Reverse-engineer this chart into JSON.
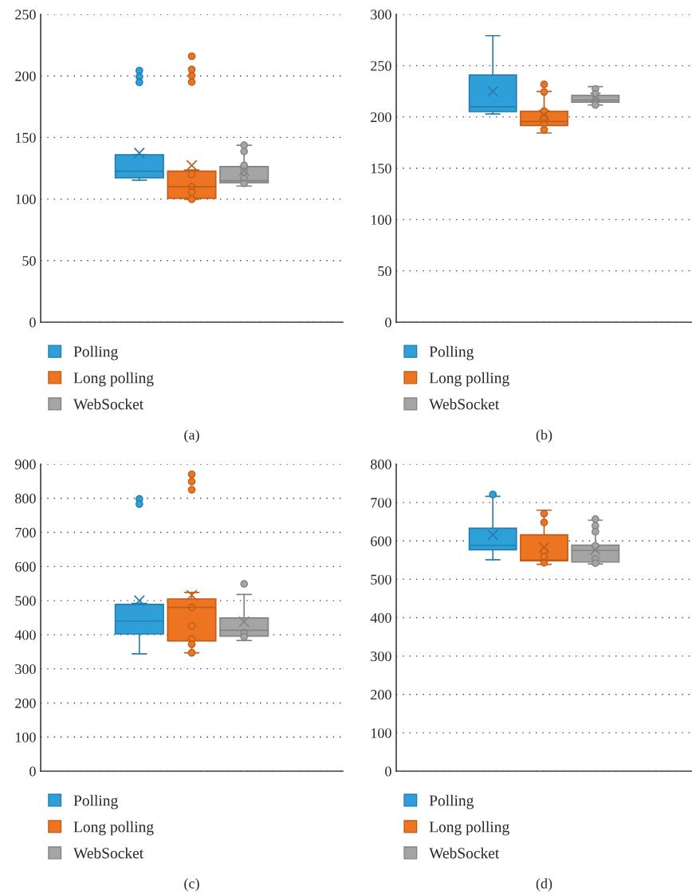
{
  "chart_data": [
    {
      "type": "box",
      "categories": [
        null
      ],
      "ylim": [
        0,
        250
      ],
      "yticks": [
        0,
        50,
        100,
        150,
        200,
        250
      ],
      "grid": "y",
      "legend": "bottom",
      "annotations": [
        "(a)"
      ],
      "series": [
        {
          "name": "Polling",
          "color": "#2e9fd8",
          "boxes": [
            {
              "low": 115.4,
              "q1": 117.3,
              "median": 122.7,
              "q3": 135.9,
              "high": 135.9,
              "mean": 137.4,
              "outliers": [
                204.3,
                199.4,
                194.8
              ]
            }
          ]
        },
        {
          "name": "Long polling",
          "color": "#ed7522",
          "boxes": [
            {
              "low": 99.8,
              "q1": 100.6,
              "median": 110,
              "q3": 122.7,
              "high": 123.6,
              "mean": 127.3,
              "outliers": [
                216,
                205.2,
                200.2,
                195,
                120.1,
                110,
                105.6,
                99.8
              ]
            }
          ]
        },
        {
          "name": "WebSocket",
          "color": "#a5a5a5",
          "boxes": [
            {
              "low": 110.6,
              "q1": 113.2,
              "median": 114.9,
              "q3": 126.4,
              "high": 143.7,
              "mean": 122.9,
              "outliers": [
                143.7,
                138.7,
                127.3,
                122.3,
                116.5,
                112.8
              ]
            }
          ]
        }
      ]
    },
    {
      "type": "box",
      "categories": [
        null
      ],
      "ylim": [
        0,
        300
      ],
      "yticks": [
        0,
        50,
        100,
        150,
        200,
        250,
        300
      ],
      "grid": "y",
      "legend": "bottom",
      "annotations": [
        "(b)"
      ],
      "series": [
        {
          "name": "Polling",
          "color": "#2e9fd8",
          "boxes": [
            {
              "low": 202.9,
              "q1": 205.2,
              "median": 209.9,
              "q3": 240.8,
              "high": 279.2,
              "mean": 224.9
            }
          ]
        },
        {
          "name": "Long polling",
          "color": "#ed7522",
          "boxes": [
            {
              "low": 184.4,
              "q1": 191.7,
              "median": 195.6,
              "q3": 205.5,
              "high": 224.9,
              "mean": 202.1,
              "outliers": [
                231.7,
                224.4,
                205.7,
                199,
                194,
                187.5
              ]
            }
          ]
        },
        {
          "name": "WebSocket",
          "color": "#a5a5a5",
          "boxes": [
            {
              "low": 211.7,
              "q1": 214.3,
              "median": 216.4,
              "q3": 221,
              "high": 229.6,
              "mean": 219,
              "outliers": [
                227.3,
                222.3,
                216.4,
                211.7
              ]
            }
          ]
        }
      ]
    },
    {
      "type": "box",
      "categories": [
        null
      ],
      "ylim": [
        0,
        900
      ],
      "yticks": [
        0,
        100,
        200,
        300,
        400,
        500,
        600,
        700,
        800,
        900
      ],
      "grid": "y",
      "legend": "bottom",
      "annotations": [
        "(c)"
      ],
      "series": [
        {
          "name": "Polling",
          "color": "#2e9fd8",
          "boxes": [
            {
              "low": 344,
              "q1": 402,
              "median": 440,
              "q3": 489,
              "high": 492,
              "mean": 500,
              "outliers": [
                798,
                783
              ]
            }
          ]
        },
        {
          "name": "Long polling",
          "color": "#ed7522",
          "boxes": [
            {
              "low": 347,
              "q1": 382,
              "median": 480,
              "q3": 505,
              "high": 524,
              "mean": 516,
              "outliers": [
                870,
                849,
                825,
                480,
                426,
                387,
                372,
                347
              ]
            }
          ]
        },
        {
          "name": "WebSocket",
          "color": "#a5a5a5",
          "boxes": [
            {
              "low": 383,
              "q1": 396,
              "median": 413,
              "q3": 449,
              "high": 518,
              "mean": 438,
              "outliers": [
                549,
                406,
                394
              ]
            }
          ]
        }
      ]
    },
    {
      "type": "box",
      "categories": [
        null
      ],
      "ylim": [
        0,
        800
      ],
      "yticks": [
        0,
        100,
        200,
        300,
        400,
        500,
        600,
        700,
        800
      ],
      "grid": "y",
      "legend": "bottom",
      "annotations": [
        "(d)"
      ],
      "series": [
        {
          "name": "Polling",
          "color": "#2e9fd8",
          "boxes": [
            {
              "low": 551,
              "q1": 577,
              "median": 588,
              "q3": 633,
              "high": 716,
              "mean": 616,
              "outliers": [
                721
              ]
            }
          ]
        },
        {
          "name": "Long polling",
          "color": "#ed7522",
          "boxes": [
            {
              "low": 539,
              "q1": 548,
              "median": 550,
              "q3": 616,
              "high": 680,
              "mean": 583,
              "outliers": [
                671,
                648,
                573,
                559,
                543
              ]
            }
          ]
        },
        {
          "name": "WebSocket",
          "color": "#a5a5a5",
          "boxes": [
            {
              "low": 540,
              "q1": 545,
              "median": 575,
              "q3": 589,
              "high": 654,
              "mean": 577,
              "outliers": [
                657,
                639,
                624,
                587,
                553,
                542
              ]
            }
          ]
        }
      ]
    }
  ]
}
